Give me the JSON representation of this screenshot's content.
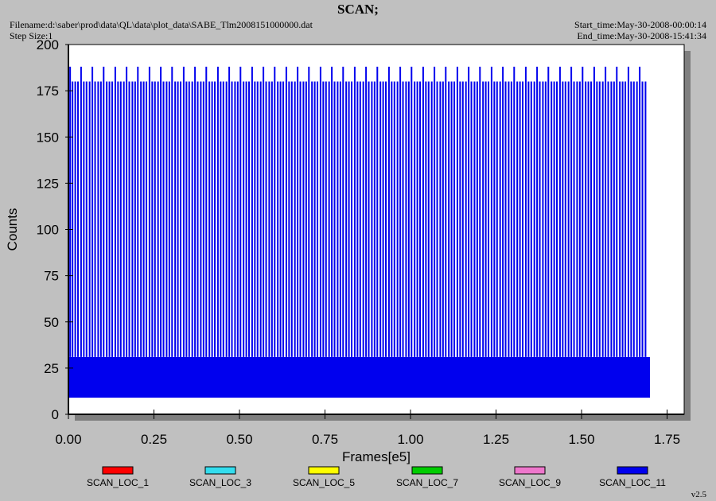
{
  "header": {
    "title": "SCAN;",
    "filename": "Filename:d:\\saber\\prod\\data\\QL\\data\\plot_data\\SABE_Tlm2008151000000.dat",
    "step_size": "Step Size:1",
    "start_time": "Start_time:May-30-2008-00:00:14",
    "end_time": "End_time:May-30-2008-15:41:34"
  },
  "version": "v2.5",
  "chart_data": {
    "type": "line",
    "title": "SCAN;",
    "xlabel": "Frames[e5]",
    "ylabel": "Counts",
    "xlim": [
      0,
      1.8
    ],
    "ylim": [
      0,
      200
    ],
    "x_ticks": [
      "0.00",
      "0.25",
      "0.50",
      "0.75",
      "1.00",
      "1.25",
      "1.50",
      "1.75"
    ],
    "y_ticks": [
      "0",
      "25",
      "50",
      "75",
      "100",
      "125",
      "150",
      "175",
      "200"
    ],
    "grid": false,
    "legend_position": "bottom",
    "colors": {
      "background": "#c0c0c0",
      "plot_area": "#ffffff",
      "shadow": "#7f7f7f",
      "SCAN_LOC_1": "#ff0000",
      "SCAN_LOC_3": "#33ddee",
      "SCAN_LOC_5": "#ffff00",
      "SCAN_LOC_7": "#00cc00",
      "SCAN_LOC_9": "#ee77cc",
      "SCAN_LOC_11": "#0000ee"
    },
    "series": [
      {
        "name": "SCAN_LOC_1"
      },
      {
        "name": "SCAN_LOC_3"
      },
      {
        "name": "SCAN_LOC_5"
      },
      {
        "name": "SCAN_LOC_7"
      },
      {
        "name": "SCAN_LOC_9"
      },
      {
        "name": "SCAN_LOC_11",
        "x_range": [
          0.0,
          1.7
        ],
        "baseline_band": [
          9,
          31
        ],
        "spike_x": [
          0.005,
          0.012,
          0.02,
          0.028,
          0.037,
          0.045,
          0.053,
          0.062,
          0.07,
          0.078,
          0.087,
          0.095,
          0.103,
          0.112,
          0.12,
          0.128,
          0.137,
          0.145,
          0.153,
          0.162,
          0.17,
          0.178,
          0.187,
          0.195,
          0.203,
          0.212,
          0.22,
          0.228,
          0.237,
          0.245,
          0.253,
          0.262,
          0.27,
          0.278,
          0.287,
          0.295,
          0.303,
          0.312,
          0.32,
          0.328,
          0.337,
          0.345,
          0.353,
          0.362,
          0.37,
          0.378,
          0.387,
          0.395,
          0.403,
          0.412,
          0.42,
          0.428,
          0.437,
          0.445,
          0.453,
          0.462,
          0.47,
          0.478,
          0.487,
          0.495,
          0.503,
          0.512,
          0.52,
          0.528,
          0.537,
          0.545,
          0.553,
          0.562,
          0.57,
          0.578,
          0.587,
          0.595,
          0.603,
          0.612,
          0.62,
          0.628,
          0.637,
          0.645,
          0.653,
          0.662,
          0.67,
          0.678,
          0.687,
          0.695,
          0.703,
          0.712,
          0.72,
          0.728,
          0.737,
          0.745,
          0.753,
          0.762,
          0.77,
          0.778,
          0.787,
          0.795,
          0.803,
          0.812,
          0.82,
          0.828,
          0.837,
          0.845,
          0.853,
          0.862,
          0.87,
          0.878,
          0.887,
          0.895,
          0.903,
          0.912,
          0.92,
          0.928,
          0.937,
          0.945,
          0.953,
          0.962,
          0.97,
          0.978,
          0.987,
          0.995,
          1.003,
          1.012,
          1.02,
          1.028,
          1.037,
          1.045,
          1.053,
          1.062,
          1.07,
          1.078,
          1.087,
          1.095,
          1.103,
          1.112,
          1.12,
          1.128,
          1.137,
          1.145,
          1.153,
          1.162,
          1.17,
          1.178,
          1.187,
          1.195,
          1.203,
          1.212,
          1.22,
          1.228,
          1.237,
          1.245,
          1.253,
          1.262,
          1.27,
          1.278,
          1.287,
          1.295,
          1.303,
          1.312,
          1.32,
          1.328,
          1.337,
          1.345,
          1.353,
          1.362,
          1.37,
          1.378,
          1.387,
          1.395,
          1.403,
          1.412,
          1.42,
          1.428,
          1.437,
          1.445,
          1.453,
          1.462,
          1.47,
          1.478,
          1.487,
          1.495,
          1.503,
          1.512,
          1.52,
          1.528,
          1.537,
          1.545,
          1.553,
          1.562,
          1.57,
          1.578,
          1.587,
          1.595,
          1.603,
          1.612,
          1.62,
          1.628,
          1.637,
          1.645,
          1.653,
          1.662,
          1.67,
          1.678,
          1.687
        ],
        "spike_heights": [
          180,
          188
        ],
        "tall_spike_every": 4
      }
    ]
  }
}
